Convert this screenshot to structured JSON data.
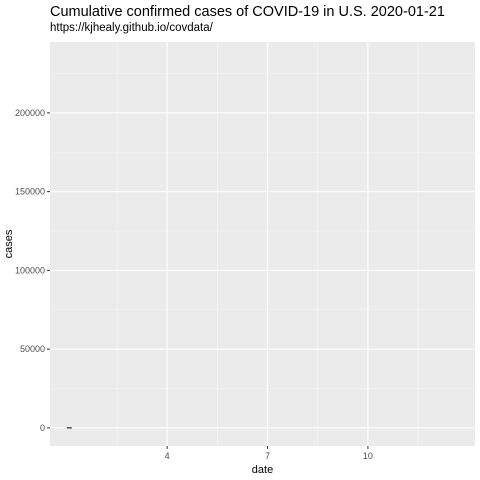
{
  "chart_data": {
    "type": "line",
    "title": "Cumulative confirmed cases of COVID-19 in U.S. 2020-01-21",
    "subtitle": "https://kjhealy.github.io/covdata/",
    "xlabel": "date",
    "ylabel": "cases",
    "x_ticks": [
      4,
      7,
      10
    ],
    "x_tick_labels": [
      "4",
      "7",
      "10"
    ],
    "xlim": [
      0.5,
      13.2
    ],
    "y_ticks": [
      0,
      50000,
      100000,
      150000,
      200000
    ],
    "y_tick_labels": [
      "0",
      "50000",
      "100000",
      "150000",
      "200000"
    ],
    "ylim": [
      -11500,
      245000
    ],
    "grid": true,
    "colors": {
      "panel_background": "#ebebeb",
      "grid_major": "#ffffff",
      "grid_minor": "#f5f5f5",
      "line": "#000000"
    },
    "series": [
      {
        "x": [
          1.0,
          1.15
        ],
        "y": [
          1,
          1
        ]
      }
    ]
  }
}
